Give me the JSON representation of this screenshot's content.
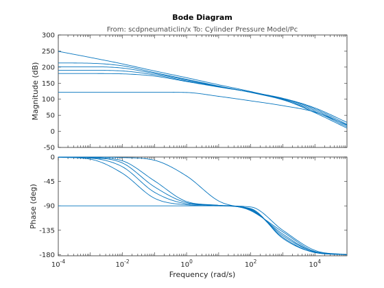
{
  "chart_data": {
    "type": "line",
    "title": "Bode Diagram",
    "subtitle": "From: scdpneumaticlin/x  To: Cylinder Pressure Model/Pc",
    "xlabel": "Frequency  (rad/s)",
    "x_scale": "log",
    "xlim": [
      0.0001,
      100000
    ],
    "x_ticks": [
      {
        "value": 0.0001,
        "base": "10",
        "exp": "-4"
      },
      {
        "value": 0.01,
        "base": "10",
        "exp": "-2"
      },
      {
        "value": 1,
        "base": "10",
        "exp": "0"
      },
      {
        "value": 100,
        "base": "10",
        "exp": "2"
      },
      {
        "value": 10000,
        "base": "10",
        "exp": "4"
      }
    ],
    "line_color": "#0072bd",
    "grid": false,
    "panels": [
      {
        "name": "magnitude",
        "ylabel": "Magnitude (dB)",
        "ylim": [
          -50,
          300
        ],
        "y_ticks": [
          -50,
          0,
          50,
          100,
          150,
          200,
          250,
          300
        ],
        "series": [
          {
            "x": [
              0.0001,
              0.001,
              0.01,
              0.1,
              1,
              10,
              100,
              1000,
              10000,
              100000
            ],
            "y": [
              122,
              122,
              122,
              122,
              121,
              109,
              95,
              80,
              60,
              20
            ]
          },
          {
            "x": [
              0.0001,
              0.001,
              0.01,
              0.1,
              1,
              10,
              100,
              1000,
              10000,
              100000
            ],
            "y": [
              180,
              180,
              179,
              172,
              155,
              138,
              122,
              103,
              73,
              28
            ]
          },
          {
            "x": [
              0.0001,
              0.001,
              0.01,
              0.1,
              1,
              10,
              100,
              1000,
              10000,
              100000
            ],
            "y": [
              190,
              190,
              188,
              176,
              157,
              139,
              122,
              102,
              70,
              22
            ]
          },
          {
            "x": [
              0.0001,
              0.001,
              0.01,
              0.1,
              1,
              10,
              100,
              1000,
              10000,
              100000
            ],
            "y": [
              201,
              201,
              197,
              180,
              160,
              140,
              122,
              100,
              66,
              18
            ]
          },
          {
            "x": [
              0.0001,
              0.001,
              0.01,
              0.1,
              1,
              10,
              100,
              1000,
              10000,
              100000
            ],
            "y": [
              213,
              212,
              204,
              183,
              162,
              141,
              121,
              98,
              62,
              14
            ]
          },
          {
            "x": [
              0.0001,
              0.001,
              0.01,
              0.1,
              1,
              10,
              100,
              1000,
              10000,
              100000
            ],
            "y": [
              249,
              230,
              210,
              188,
              167,
              145,
              124,
              99,
              58,
              10
            ]
          }
        ]
      },
      {
        "name": "phase",
        "ylabel": "Phase (deg)",
        "ylim": [
          -182,
          0
        ],
        "y_ticks": [
          0,
          -45,
          -90,
          -135,
          -180
        ],
        "series": [
          {
            "x": [
              0.0001,
              0.001,
              0.01,
              0.1,
              1,
              10,
              100,
              1000,
              10000,
              100000
            ],
            "y": [
              -90,
              -90,
              -90,
              -90,
              -90,
              -90,
              -92,
              -135,
              -172,
              -180
            ]
          },
          {
            "x": [
              0.0001,
              0.001,
              0.01,
              0.1,
              1,
              10,
              100,
              1000,
              10000,
              100000
            ],
            "y": [
              -0.5,
              -4,
              -30,
              -76,
              -88,
              -90,
              -95,
              -150,
              -176,
              -180
            ]
          },
          {
            "x": [
              0.0001,
              0.001,
              0.01,
              0.1,
              1,
              10,
              100,
              1000,
              10000,
              100000
            ],
            "y": [
              -0.3,
              -2,
              -18,
              -65,
              -86,
              -89,
              -96,
              -148,
              -176,
              -180
            ]
          },
          {
            "x": [
              0.0001,
              0.001,
              0.01,
              0.1,
              1,
              10,
              100,
              1000,
              10000,
              100000
            ],
            "y": [
              -0.2,
              -1.5,
              -11,
              -55,
              -84,
              -89,
              -97,
              -145,
              -175,
              -180
            ]
          },
          {
            "x": [
              0.0001,
              0.001,
              0.01,
              0.1,
              1,
              10,
              100,
              1000,
              10000,
              100000
            ],
            "y": [
              -0.1,
              -0.8,
              -7,
              -44,
              -82,
              -89,
              -98,
              -142,
              -175,
              -180
            ]
          },
          {
            "x": [
              0.0001,
              0.001,
              0.01,
              0.1,
              1,
              10,
              100,
              1000,
              10000,
              100000
            ],
            "y": [
              0,
              -0.1,
              -1,
              -6,
              -35,
              -81,
              -99,
              -138,
              -174,
              -180
            ]
          }
        ]
      }
    ]
  }
}
